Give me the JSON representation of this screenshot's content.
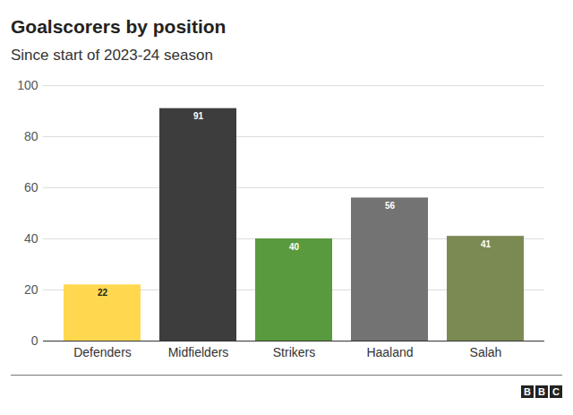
{
  "chart_data": {
    "type": "bar",
    "title": "Goalscorers by position",
    "subtitle": "Since start of 2023-24 season",
    "categories": [
      "Defenders",
      "Midfielders",
      "Strikers",
      "Haaland",
      "Salah"
    ],
    "values": [
      22,
      91,
      40,
      56,
      41
    ],
    "colors": [
      "#ffd84f",
      "#3d3d3d",
      "#5a9a3e",
      "#737373",
      "#7b8a53"
    ],
    "ylim": [
      0,
      100
    ],
    "yticks": [
      0,
      20,
      40,
      60,
      80,
      100
    ],
    "grid": true,
    "data_labels": true,
    "caption": "BBC"
  }
}
